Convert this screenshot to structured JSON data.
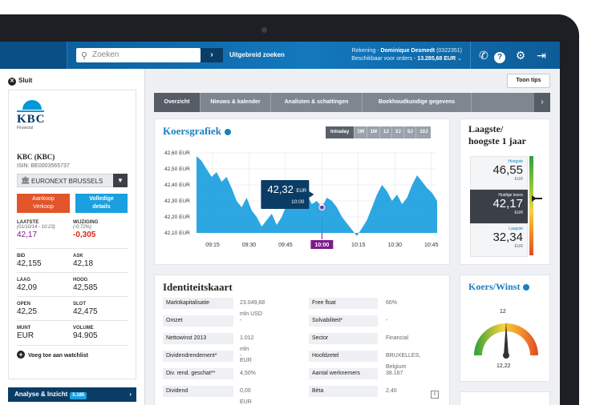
{
  "topbar": {
    "search_placeholder": "Zoeken",
    "search_go": "›",
    "advanced_search": "Uitgebreid zoeken",
    "account_label": "Rekening - ",
    "account_name": "Dominique Desmedt",
    "account_number": "(0322351)",
    "available_label": "Beschikbaar voor orders - ",
    "available_amount": "13.285,68 EUR",
    "icons": [
      "phone-icon",
      "help-icon",
      "gear-icon",
      "logout-icon"
    ]
  },
  "sidebar": {
    "close_label": "Sluit",
    "logo_text": "KBC",
    "logo_sub": "Financial",
    "company": "KBC (KBC)",
    "isin": "ISIN: BE0003565737",
    "exchange": "EURONEXT BRUSSELS",
    "buy_sell_line1": "Aankoop",
    "buy_sell_line2": "Verkoop",
    "details_line1": "Volledige",
    "details_line2": "details",
    "last_label": "LAATSTE",
    "last_sub": "(01/10/14 - 10:23)",
    "last_value": "42,17",
    "change_label": "WIJZIGING",
    "change_sub": "(-0,72%)",
    "change_value": "-0,305",
    "bid_label": "BID",
    "bid_value": "42,155",
    "ask_label": "ASK",
    "ask_value": "42,18",
    "low_label": "LAAG",
    "low_value": "42,09",
    "high_label": "HOOG",
    "high_value": "42,585",
    "open_label": "OPEN",
    "open_value": "42,25",
    "close_label2": "SLOT",
    "close_value": "42,475",
    "currency_label": "MUNT",
    "currency_value": "EUR",
    "volume_label": "VOLUME",
    "volume_value": "94.905",
    "watchlist": "Voeg toe aan watchlist",
    "analyse": "Analyse & Inzicht",
    "analyse_badge": "5.185"
  },
  "toon_tips": "Toon tips",
  "tabs": [
    "Overzicht",
    "Nieuws & kalender",
    "Analisten & schattingen",
    "Boekhoudkundige gegevens"
  ],
  "chart_panel": {
    "title": "Koersgrafiek",
    "ranges": [
      "Intraday",
      "1W",
      "1M",
      "1J",
      "2J",
      "5J",
      "10J"
    ],
    "tooltip_value": "42,32",
    "tooltip_unit": "EUR",
    "tooltip_time": "10:00"
  },
  "chart_data": {
    "type": "area",
    "title": "Koersgrafiek",
    "y_ticks": [
      "42,60 EUR",
      "42,50 EUR",
      "42,40 EUR",
      "42,30 EUR",
      "42,20 EUR",
      "42,10 EUR"
    ],
    "x_ticks": [
      "09:15",
      "09:30",
      "09:45",
      "10:00",
      "10:15",
      "10:30",
      "10:45"
    ],
    "highlight_x": "10:00",
    "ylim": [
      42.1,
      42.6
    ],
    "series": [
      {
        "values": [
          42.58,
          42.55,
          42.5,
          42.45,
          42.48,
          42.42,
          42.45,
          42.38,
          42.3,
          42.26,
          42.32,
          42.24,
          42.2,
          42.14,
          42.18,
          42.22,
          42.15,
          42.2,
          42.28,
          42.32,
          42.35,
          42.3,
          42.34,
          42.28,
          42.3,
          42.26,
          42.32,
          42.3,
          42.26,
          42.2,
          42.16,
          42.12,
          42.08,
          42.13,
          42.18,
          42.26,
          42.34,
          42.4,
          42.36,
          42.3,
          42.34,
          42.28,
          42.32,
          42.4,
          42.46,
          42.42,
          42.38,
          42.35,
          42.3
        ]
      }
    ],
    "color": "#1a9fe0",
    "grid": true
  },
  "range_panel": {
    "title_line1": "Laagste/",
    "title_line2": "hoogste 1 jaar",
    "high_label": "Hoogste",
    "high_value": "46,55",
    "high_unit": "EUR",
    "current_label": "Huidige koers",
    "current_value": "42,17",
    "current_unit": "EUR",
    "low_label": "Laagste",
    "low_value": "32,34",
    "low_unit": "EUR"
  },
  "identity": {
    "title": "Identiteitskaart",
    "left": [
      {
        "k": "Marktkapitalisatie",
        "v": "23.049,68 mln USD"
      },
      {
        "k": "Omzet",
        "v": "-"
      },
      {
        "k": "Nettowinst 2013",
        "v": "1.012 mln EUR"
      },
      {
        "k": "Dividendrendement*",
        "v": "-"
      },
      {
        "k": "Div. rend. geschat**",
        "v": "4,50%"
      },
      {
        "k": "Dividend",
        "v": "0,00 EUR"
      }
    ],
    "right": [
      {
        "k": "Free float",
        "v": "66%"
      },
      {
        "k": "Solvabiliteit*",
        "v": "-"
      },
      {
        "k": "Sector",
        "v": "Financial"
      },
      {
        "k": "Hoofdzetel",
        "v": "BRUXELLES, Belgium"
      },
      {
        "k": "Aantal werknemers",
        "v": "38.167"
      },
      {
        "k": "Bèta",
        "v": "2,40"
      }
    ],
    "info_icon": "i"
  },
  "pe_panel": {
    "title": "Koers/Winst",
    "gauge_top": "12",
    "gauge_value": "12,22"
  }
}
